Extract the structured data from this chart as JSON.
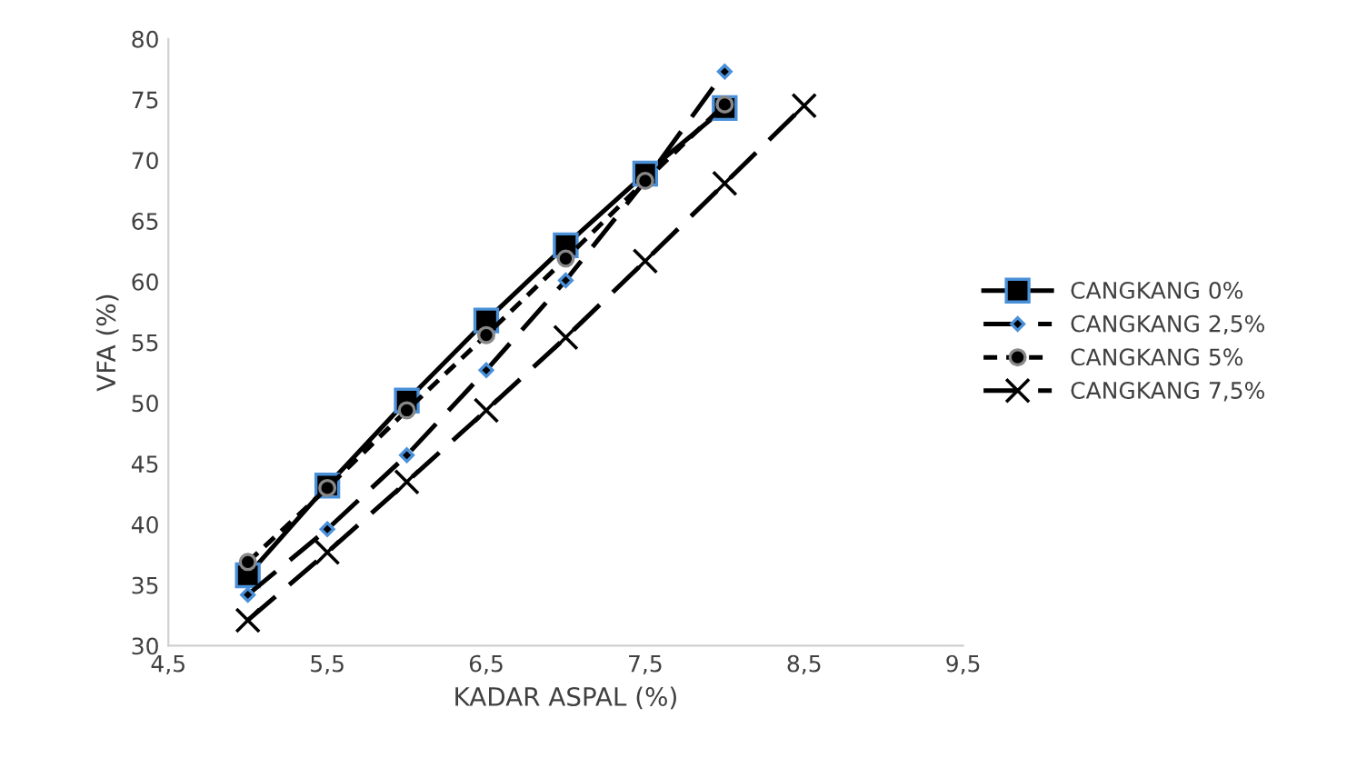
{
  "chart_data": {
    "type": "line",
    "xlabel": "KADAR ASPAL (%)",
    "ylabel": "VFA (%)",
    "xlim": [
      4.5,
      9.5
    ],
    "xticks": [
      {
        "value": 4.5,
        "label": "4,5"
      },
      {
        "value": 5.5,
        "label": "5,5"
      },
      {
        "value": 6.5,
        "label": "6,5"
      },
      {
        "value": 7.5,
        "label": "7,5"
      },
      {
        "value": 8.5,
        "label": "8,5"
      },
      {
        "value": 9.5,
        "label": "9,5"
      }
    ],
    "ylim": [
      30,
      80
    ],
    "yticks": [
      30,
      35,
      40,
      45,
      50,
      55,
      60,
      65,
      70,
      75,
      80
    ],
    "grid": false,
    "legend": "right",
    "series": [
      {
        "name": "CANGKANG 0%",
        "color": "#000000",
        "marker": "square",
        "line_style": "solid",
        "x": [
          5,
          5.5,
          6,
          6.5,
          7,
          7.5,
          8
        ],
        "values": [
          35.8,
          43.2,
          50.2,
          56.8,
          63.0,
          68.9,
          74.3
        ]
      },
      {
        "name": "CANGKANG 2,5%",
        "color": "#000000",
        "marker": "diamond",
        "line_style": "dashed",
        "x": [
          5,
          5.5,
          6,
          6.5,
          7,
          7.5,
          8
        ],
        "values": [
          34.2,
          39.6,
          45.7,
          52.7,
          60.1,
          68.3,
          77.3
        ]
      },
      {
        "name": "CANGKANG 5%",
        "color": "#000000",
        "marker": "circle",
        "line_style": "dotted",
        "x": [
          5,
          5.5,
          6,
          6.5,
          7,
          7.5,
          8
        ],
        "values": [
          36.9,
          43.0,
          49.4,
          55.6,
          61.9,
          68.3,
          74.6
        ]
      },
      {
        "name": "CANGKANG 7,5%",
        "color": "#000000",
        "marker": "cross",
        "line_style": "dashed",
        "x": [
          5,
          5.5,
          6,
          6.5,
          7,
          7.5,
          8,
          8.5
        ],
        "values": [
          32.1,
          37.7,
          43.5,
          49.4,
          55.4,
          61.7,
          68.1,
          74.5
        ]
      }
    ]
  }
}
